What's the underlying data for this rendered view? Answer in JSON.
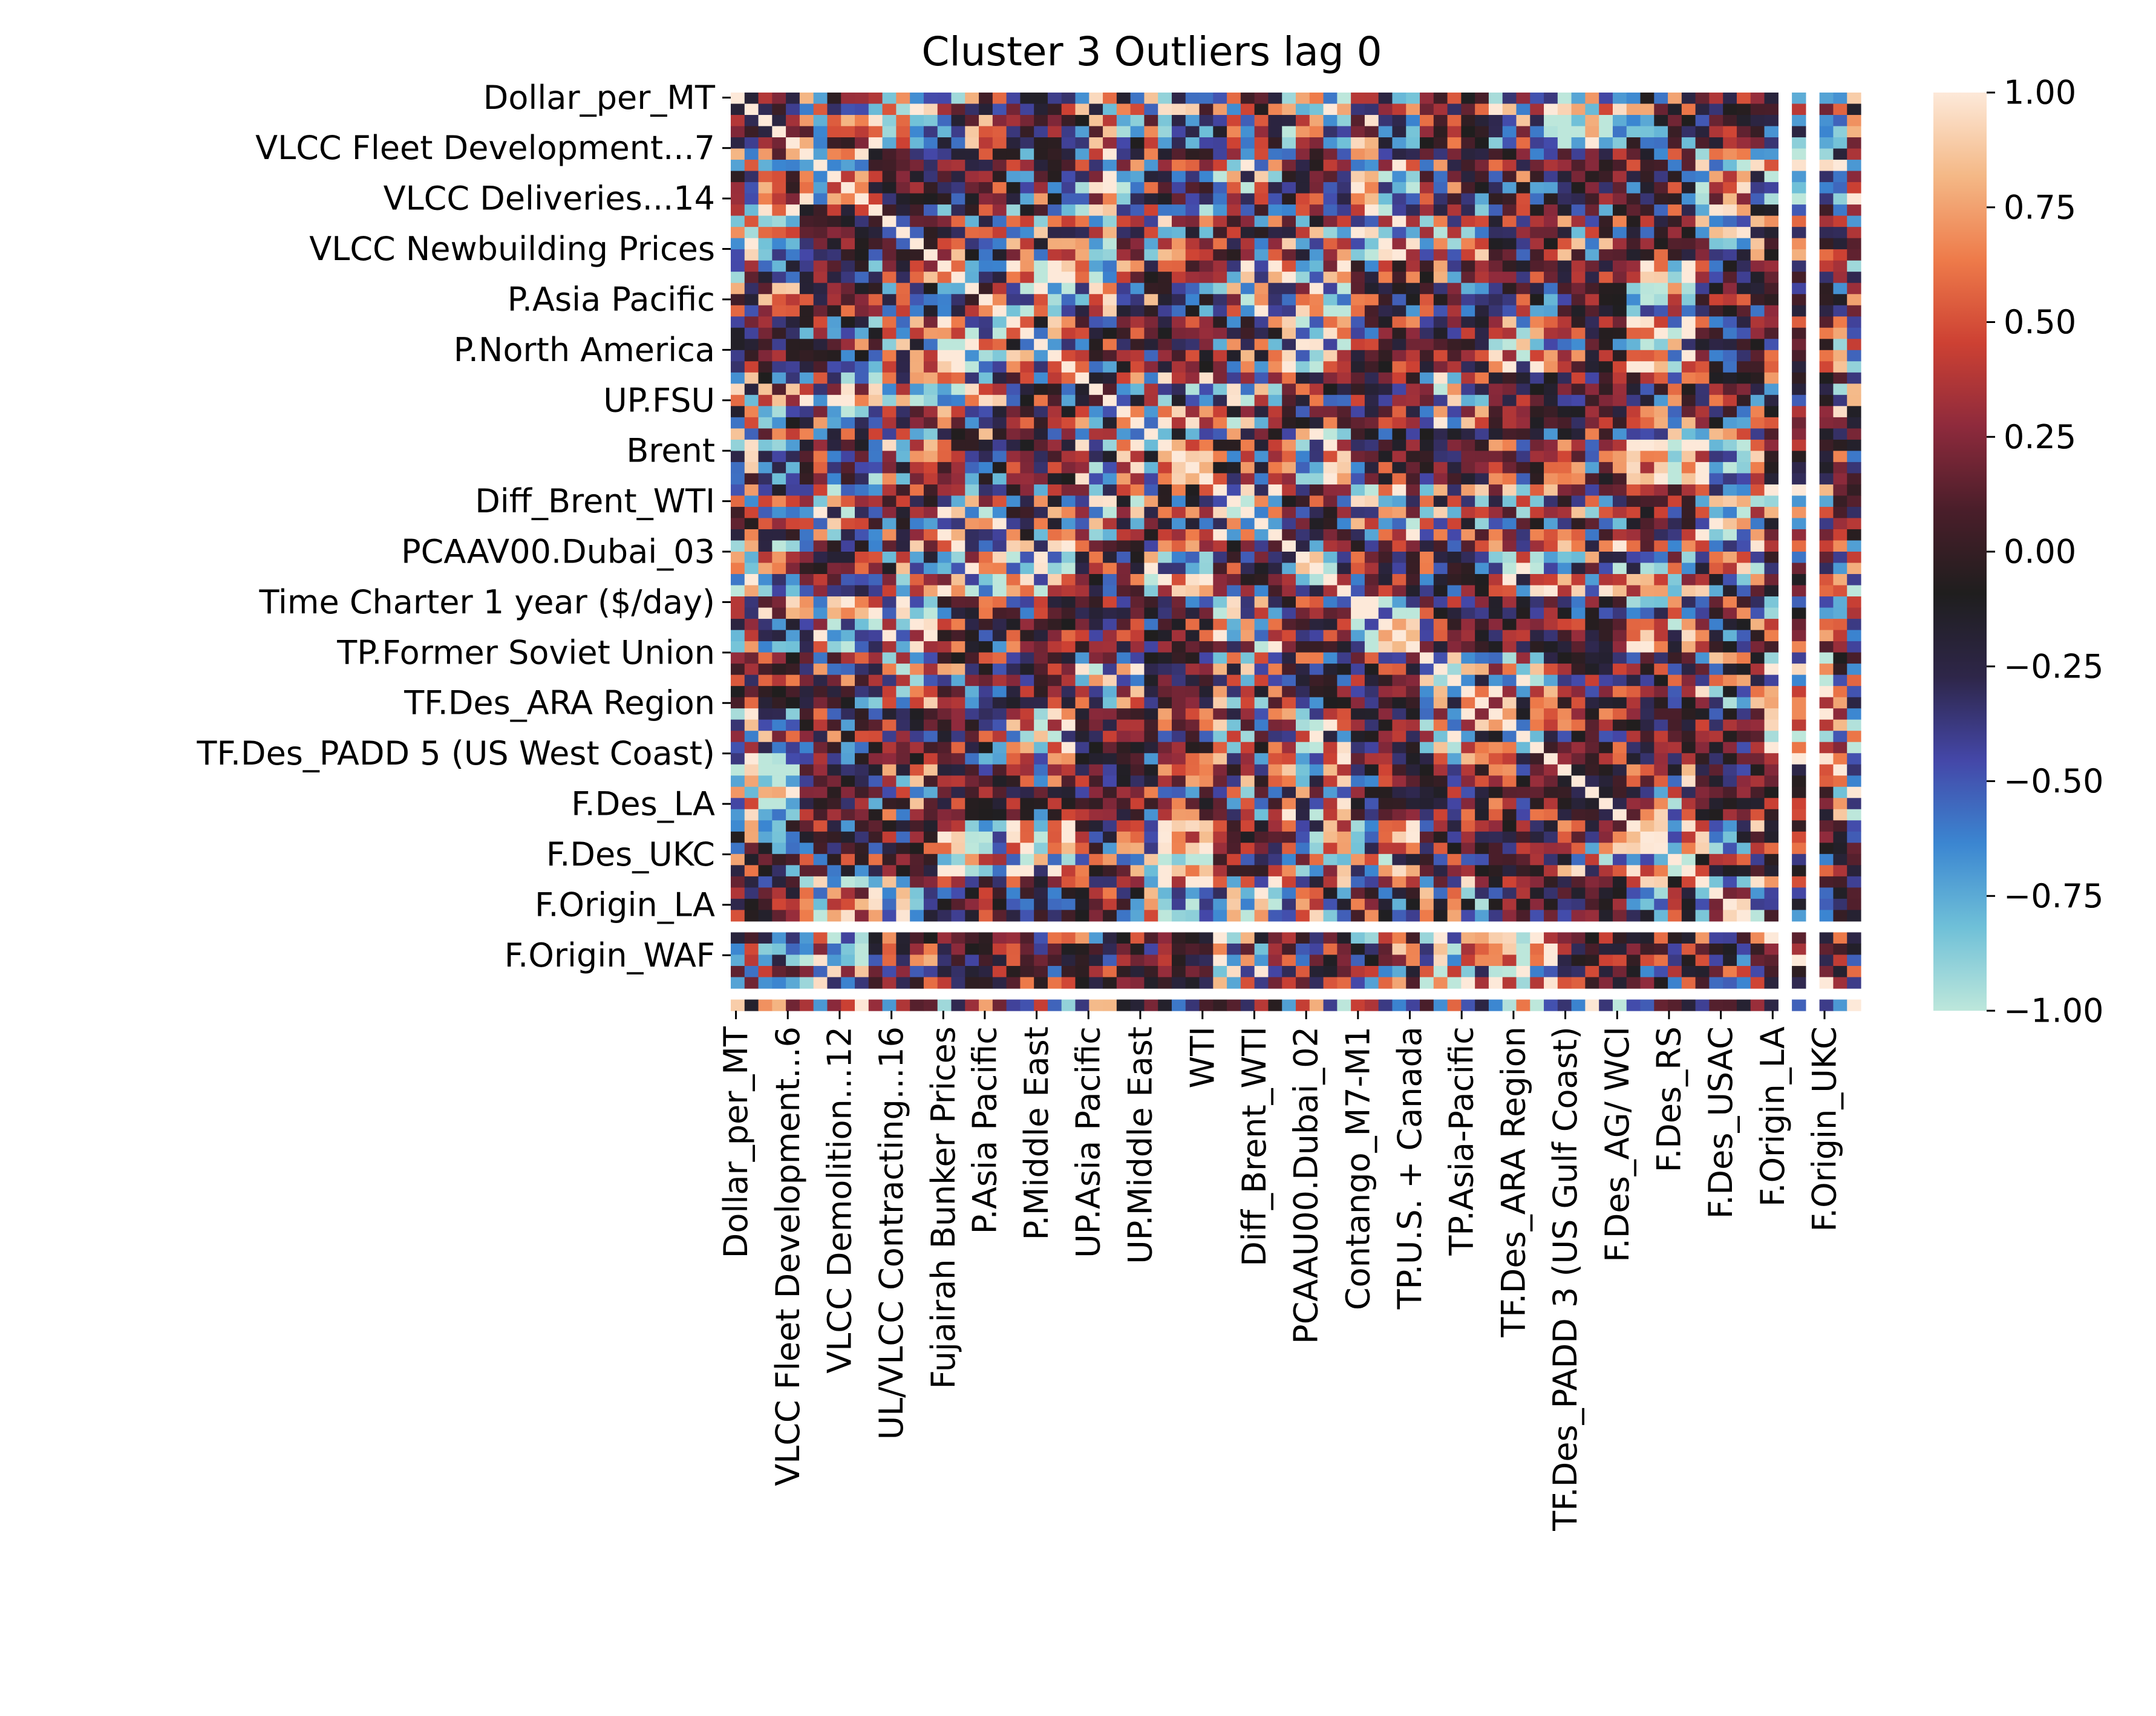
{
  "chart_data": {
    "type": "heatmap",
    "title": "Cluster 3 Outliers lag 0",
    "xlabel": "",
    "ylabel": "",
    "n_variables": 82,
    "row_tick_labels": [
      "Dollar_per_MT",
      "VLCC Fleet Development...7",
      "VLCC Deliveries...14",
      "VLCC Newbuilding Prices",
      "P.Asia Pacific",
      "P.North America",
      "UP.FSU",
      "Brent",
      "Diff_Brent_WTI",
      "PCAAV00.Dubai_03",
      "Time Charter 1 year ($/day)",
      "TP.Former Soviet Union",
      "TF.Des_ARA Region",
      "TF.Des_PADD 5 (US West Coast)",
      "F.Des_LA",
      "F.Des_UKC",
      "F.Origin_LA",
      "F.Origin_WAF"
    ],
    "column_tick_labels": [
      "Dollar_per_MT",
      "VLCC Fleet Development...6",
      "VLCC Demolition...12",
      "UL/VLCC Contracting...16",
      "Fujairah Bunker Prices",
      "P.Asia Pacific",
      "P.Middle East",
      "UP.Asia Pacific",
      "UP.Middle East",
      "WTI",
      "Diff_Brent_WTI",
      "PCAAU00.Dubai_02",
      "Contango_M7-M1",
      "TP.U.S. + Canada",
      "TP.Asia-Pacific",
      "TF.Des_ARA Region",
      "TF.Des_PADD 3 (US Gulf Coast)",
      "F.Des_AG/ WCI",
      "F.Des_RS",
      "F.Des_USAC",
      "F.Origin_LA",
      "F.Origin_UKC"
    ],
    "row_tick_indices": [
      0,
      5,
      10,
      15,
      20,
      25,
      30,
      35,
      40,
      45,
      50,
      55,
      60,
      65,
      70,
      75,
      80,
      85
    ],
    "column_tick_indices": [
      0,
      5,
      10,
      15,
      20,
      24,
      29,
      34,
      39,
      45,
      50,
      55,
      60,
      65,
      70,
      75,
      80,
      85,
      90,
      95,
      100,
      105
    ],
    "missing_rows": [
      74,
      80
    ],
    "missing_columns": [
      76,
      78
    ],
    "colorbar": {
      "vmin": -1.0,
      "vmax": 1.0,
      "tick_labels": [
        "1.00",
        "0.75",
        "0.50",
        "0.25",
        "0.00",
        "−0.25",
        "−0.50",
        "−0.75",
        "−1.00"
      ],
      "tick_values": [
        1.0,
        0.75,
        0.5,
        0.25,
        0.0,
        -0.25,
        -0.5,
        -0.75,
        -1.0
      ],
      "colormap": "icefire",
      "colors": [
        "#bde7db",
        "#6fc0d8",
        "#3b86d1",
        "#4447a8",
        "#2e2649",
        "#1f1e1e",
        "#4a1e2a",
        "#8e2a3c",
        "#cd4133",
        "#ee7b4a",
        "#f4b886",
        "#fde9d9"
      ]
    },
    "values": "82x82 symmetric correlation matrix; diagonal = 1.00; individual cell values are not legible at screenshot resolution"
  }
}
